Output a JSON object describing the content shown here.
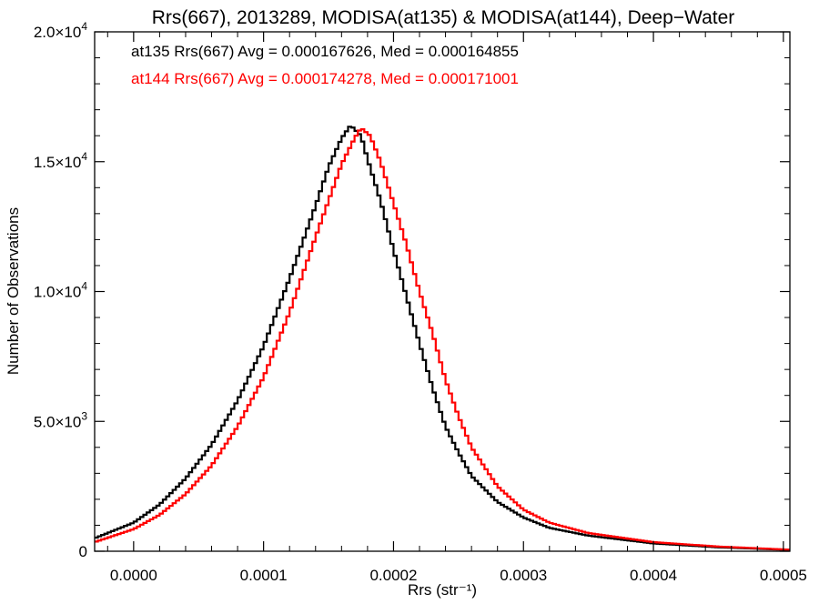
{
  "chart_data": {
    "type": "histogram",
    "title": "Rrs(667), 2013289, MODISA(at135) & MODISA(at144), Deep−Water",
    "xlabel": "Rrs (str⁻¹)",
    "ylabel": "Number of Observations",
    "xlim": [
      -3e-05,
      0.000505
    ],
    "ylim": [
      0,
      20000
    ],
    "xticks": [
      {
        "value": 0.0,
        "label": "0.0000"
      },
      {
        "value": 0.0001,
        "label": "0.0001"
      },
      {
        "value": 0.0002,
        "label": "0.0002"
      },
      {
        "value": 0.0003,
        "label": "0.0003"
      },
      {
        "value": 0.0004,
        "label": "0.0004"
      },
      {
        "value": 0.0005,
        "label": "0.0005"
      }
    ],
    "yticks": [
      {
        "value": 0,
        "mant": "0",
        "exp": ""
      },
      {
        "value": 5000,
        "mant": "5.0×10",
        "exp": "3"
      },
      {
        "value": 10000,
        "mant": "1.0×10",
        "exp": "4"
      },
      {
        "value": 15000,
        "mant": "1.5×10",
        "exp": "4"
      },
      {
        "value": 20000,
        "mant": "2.0×10",
        "exp": "4"
      }
    ],
    "legend_placement": "top-left",
    "series": [
      {
        "color": "#000000",
        "stats_text": "at135 Rrs(667) Avg = 0.000167626, Med = 0.000164855",
        "points": [
          [
            -3e-05,
            500
          ],
          [
            0.0,
            1100
          ],
          [
            2e-05,
            1800
          ],
          [
            4e-05,
            2800
          ],
          [
            6e-05,
            4100
          ],
          [
            8e-05,
            5800
          ],
          [
            0.0001,
            7900
          ],
          [
            0.00012,
            10500
          ],
          [
            0.00014,
            13300
          ],
          [
            0.00015,
            14800
          ],
          [
            0.00016,
            15900
          ],
          [
            0.000167,
            16400
          ],
          [
            0.000175,
            16000
          ],
          [
            0.00018,
            15100
          ],
          [
            0.00019,
            13500
          ],
          [
            0.0002,
            11600
          ],
          [
            0.00021,
            9800
          ],
          [
            0.00022,
            8000
          ],
          [
            0.00023,
            6300
          ],
          [
            0.00024,
            4800
          ],
          [
            0.00025,
            3800
          ],
          [
            0.00026,
            2900
          ],
          [
            0.00028,
            1900
          ],
          [
            0.0003,
            1300
          ],
          [
            0.00032,
            900
          ],
          [
            0.00035,
            600
          ],
          [
            0.0004,
            300
          ],
          [
            0.00045,
            150
          ],
          [
            0.000505,
            50
          ]
        ]
      },
      {
        "color": "#ff0000",
        "stats_text": "at144 Rrs(667) Avg = 0.000174278, Med = 0.000171001",
        "points": [
          [
            -3e-05,
            350
          ],
          [
            0.0,
            850
          ],
          [
            2e-05,
            1400
          ],
          [
            4e-05,
            2200
          ],
          [
            6e-05,
            3300
          ],
          [
            8e-05,
            4800
          ],
          [
            0.0001,
            6700
          ],
          [
            0.00012,
            9200
          ],
          [
            0.00014,
            12100
          ],
          [
            0.00016,
            14900
          ],
          [
            0.00017,
            15900
          ],
          [
            0.000175,
            16300
          ],
          [
            0.000182,
            16000
          ],
          [
            0.00019,
            15000
          ],
          [
            0.0002,
            13400
          ],
          [
            0.00021,
            11800
          ],
          [
            0.00022,
            10000
          ],
          [
            0.00023,
            8400
          ],
          [
            0.00024,
            6600
          ],
          [
            0.00025,
            5200
          ],
          [
            0.00026,
            4000
          ],
          [
            0.00028,
            2500
          ],
          [
            0.0003,
            1600
          ],
          [
            0.00032,
            1100
          ],
          [
            0.00035,
            700
          ],
          [
            0.0004,
            350
          ],
          [
            0.00045,
            180
          ],
          [
            0.000505,
            60
          ]
        ]
      }
    ]
  }
}
